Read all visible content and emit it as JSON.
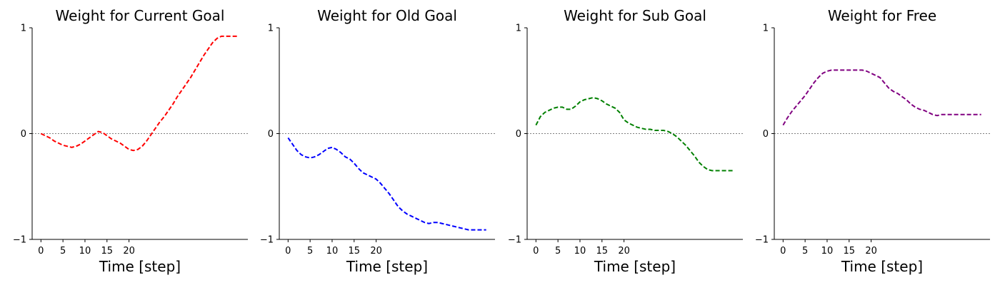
{
  "chart_data": [
    {
      "type": "line",
      "title": "Weight for Current Goal",
      "xlabel": "Time [step]",
      "ylabel": "",
      "xticks": [
        0,
        5,
        10,
        15,
        20
      ],
      "yticks": [
        -1,
        0,
        1
      ],
      "ytick_labels": [
        "−1",
        "0",
        "1"
      ],
      "ylim": [
        -1,
        1
      ],
      "xlim": [
        -2,
        47
      ],
      "color": "#ff0000",
      "series": [
        {
          "x": [
            0,
            1,
            2,
            3,
            4,
            5,
            6,
            7,
            8,
            9,
            10,
            11,
            12,
            13,
            14,
            15,
            16,
            17,
            18,
            19,
            20,
            21,
            22,
            23,
            24,
            25,
            26,
            27,
            28,
            29,
            30,
            31,
            32,
            33,
            34,
            35,
            36,
            37,
            38,
            39,
            40,
            41,
            42,
            43,
            44,
            45
          ],
          "y": [
            0,
            -0.02,
            -0.04,
            -0.07,
            -0.09,
            -0.11,
            -0.12,
            -0.13,
            -0.12,
            -0.1,
            -0.07,
            -0.04,
            -0.01,
            0.02,
            0.01,
            -0.02,
            -0.05,
            -0.07,
            -0.09,
            -0.12,
            -0.15,
            -0.16,
            -0.15,
            -0.12,
            -0.07,
            -0.01,
            0.05,
            0.11,
            0.16,
            0.22,
            0.28,
            0.35,
            0.41,
            0.47,
            0.53,
            0.6,
            0.67,
            0.74,
            0.8,
            0.86,
            0.9,
            0.92,
            0.92,
            0.92,
            0.92,
            0.92
          ]
        }
      ]
    },
    {
      "type": "line",
      "title": "Weight for Old Goal",
      "xlabel": "Time [step]",
      "ylabel": "",
      "xticks": [
        0,
        5,
        10,
        15,
        20
      ],
      "yticks": [
        -1,
        0,
        1
      ],
      "ytick_labels": [
        "−1",
        "0",
        "1"
      ],
      "ylim": [
        -1,
        1
      ],
      "xlim": [
        -2,
        47
      ],
      "color": "#0000ff",
      "series": [
        {
          "x": [
            0,
            1,
            2,
            3,
            4,
            5,
            6,
            7,
            8,
            9,
            10,
            11,
            12,
            13,
            14,
            15,
            16,
            17,
            18,
            19,
            20,
            21,
            22,
            23,
            24,
            25,
            26,
            27,
            28,
            29,
            30,
            31,
            32,
            33,
            34,
            35,
            36,
            37,
            38,
            39,
            40,
            41,
            42,
            43,
            44,
            45
          ],
          "y": [
            -0.04,
            -0.1,
            -0.16,
            -0.2,
            -0.22,
            -0.23,
            -0.22,
            -0.2,
            -0.17,
            -0.14,
            -0.13,
            -0.15,
            -0.18,
            -0.22,
            -0.24,
            -0.28,
            -0.33,
            -0.37,
            -0.39,
            -0.41,
            -0.43,
            -0.47,
            -0.52,
            -0.57,
            -0.63,
            -0.69,
            -0.73,
            -0.76,
            -0.78,
            -0.8,
            -0.82,
            -0.84,
            -0.85,
            -0.84,
            -0.84,
            -0.85,
            -0.86,
            -0.87,
            -0.88,
            -0.89,
            -0.9,
            -0.91,
            -0.91,
            -0.91,
            -0.91,
            -0.91
          ]
        }
      ]
    },
    {
      "type": "line",
      "title": "Weight for Sub Goal",
      "xlabel": "Time [step]",
      "ylabel": "",
      "xticks": [
        0,
        5,
        10,
        15,
        20
      ],
      "yticks": [
        -1,
        0,
        1
      ],
      "ytick_labels": [
        "−1",
        "0",
        "1"
      ],
      "ylim": [
        -1,
        1
      ],
      "xlim": [
        -2,
        47
      ],
      "color": "#008000",
      "series": [
        {
          "x": [
            0,
            1,
            2,
            3,
            4,
            5,
            6,
            7,
            8,
            9,
            10,
            11,
            12,
            13,
            14,
            15,
            16,
            17,
            18,
            19,
            20,
            21,
            22,
            23,
            24,
            25,
            26,
            27,
            28,
            29,
            30,
            31,
            32,
            33,
            34,
            35,
            36,
            37,
            38,
            39,
            40,
            41,
            42,
            43,
            44,
            45
          ],
          "y": [
            0.08,
            0.16,
            0.2,
            0.22,
            0.24,
            0.25,
            0.25,
            0.23,
            0.23,
            0.26,
            0.3,
            0.32,
            0.33,
            0.34,
            0.33,
            0.31,
            0.28,
            0.26,
            0.24,
            0.2,
            0.13,
            0.1,
            0.08,
            0.06,
            0.05,
            0.04,
            0.04,
            0.03,
            0.03,
            0.03,
            0.02,
            0,
            -0.03,
            -0.07,
            -0.11,
            -0.16,
            -0.21,
            -0.27,
            -0.31,
            -0.34,
            -0.35,
            -0.35,
            -0.35,
            -0.35,
            -0.35,
            -0.35
          ]
        }
      ]
    },
    {
      "type": "line",
      "title": "Weight for Free",
      "xlabel": "Time [step]",
      "ylabel": "",
      "xticks": [
        0,
        5,
        10,
        15,
        20
      ],
      "yticks": [
        -1,
        0,
        1
      ],
      "ytick_labels": [
        "−1",
        "0",
        "1"
      ],
      "ylim": [
        -1,
        1
      ],
      "xlim": [
        -2,
        47
      ],
      "color": "#800080",
      "series": [
        {
          "x": [
            0,
            1,
            2,
            3,
            4,
            5,
            6,
            7,
            8,
            9,
            10,
            11,
            12,
            13,
            14,
            15,
            16,
            17,
            18,
            19,
            20,
            21,
            22,
            23,
            24,
            25,
            26,
            27,
            28,
            29,
            30,
            31,
            32,
            33,
            34,
            35,
            36,
            37,
            38,
            39,
            40,
            41,
            42,
            43,
            44,
            45
          ],
          "y": [
            0.08,
            0.15,
            0.21,
            0.26,
            0.31,
            0.36,
            0.42,
            0.48,
            0.53,
            0.57,
            0.59,
            0.6,
            0.6,
            0.6,
            0.6,
            0.6,
            0.6,
            0.6,
            0.6,
            0.59,
            0.57,
            0.55,
            0.53,
            0.48,
            0.43,
            0.4,
            0.38,
            0.35,
            0.32,
            0.28,
            0.25,
            0.23,
            0.22,
            0.2,
            0.18,
            0.17,
            0.18,
            0.18,
            0.18,
            0.18,
            0.18,
            0.18,
            0.18,
            0.18,
            0.18,
            0.18
          ]
        }
      ]
    }
  ]
}
